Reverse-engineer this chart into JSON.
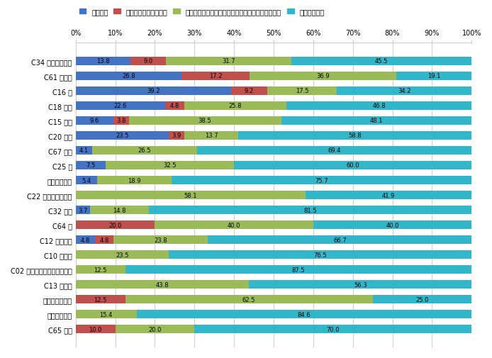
{
  "categories": [
    "C34 気管支及び肺",
    "C61 前立腺",
    "C16 胃",
    "C18 結腸",
    "C15 食道",
    "C20 直腸",
    "C67 膀胱",
    "C25 膵",
    "悪性リンパ腫",
    "C22 肝及び肝内胆管",
    "C32 喉頭",
    "C64 腎",
    "C12 梨状陥凹",
    "C10 中咽頭",
    "C02 その他及び部位不明の舌",
    "C13 下咽頭",
    "他の造血器腫瘍",
    "多発性骨髄腫",
    "C65 腎盂"
  ],
  "series": {
    "がん検診": [
      13.8,
      26.8,
      39.2,
      22.6,
      9.6,
      23.5,
      4.1,
      7.5,
      5.4,
      0.0,
      3.7,
      0.0,
      4.8,
      0.0,
      0.0,
      0.0,
      0.0,
      0.0,
      0.0
    ],
    "健康診断・人間ドック": [
      9.0,
      17.2,
      9.2,
      4.8,
      3.8,
      3.9,
      0.0,
      0.0,
      0.0,
      0.0,
      0.0,
      20.0,
      4.8,
      0.0,
      0.0,
      0.0,
      12.5,
      0.0,
      10.0
    ],
    "他疾患の経過観察中（入院時ルーチン検査を含む）": [
      31.7,
      36.9,
      17.5,
      25.8,
      38.5,
      13.7,
      26.5,
      32.5,
      18.9,
      58.1,
      14.8,
      40.0,
      23.8,
      23.5,
      12.5,
      43.8,
      62.5,
      15.4,
      20.0
    ],
    "その他・不明": [
      45.5,
      19.1,
      34.2,
      46.8,
      48.1,
      58.8,
      69.4,
      60.0,
      75.7,
      41.9,
      81.5,
      40.0,
      66.7,
      76.5,
      87.5,
      56.3,
      25.0,
      84.6,
      70.0
    ]
  },
  "colors": {
    "がん検診": "#4472C4",
    "健康診断・人間ドック": "#C0504D",
    "他疾患の経過観察中（入院時ルーチン検査を含む）": "#9BBB59",
    "その他・不明": "#31B7C9"
  },
  "legend_labels": [
    "がん検診",
    "健康診断・人間ドック",
    "他疾患の経過観察中（入院時ルーチン検査を含む）",
    "その他・不明"
  ],
  "xlim": [
    0,
    100
  ],
  "bar_height": 0.6,
  "grid_color": "#CCCCCC",
  "background_color": "#FFFFFF",
  "font_size_tick": 7,
  "font_size_legend": 7,
  "font_size_bar_label": 6
}
